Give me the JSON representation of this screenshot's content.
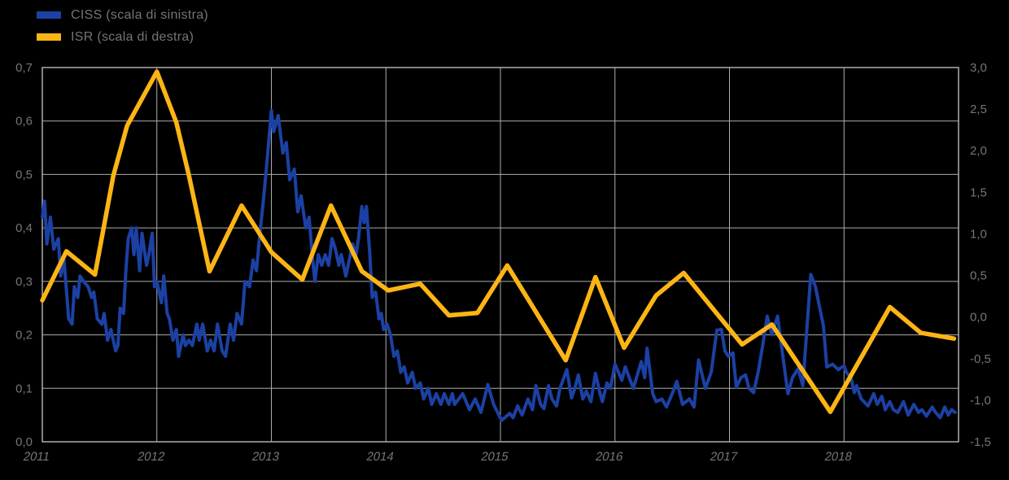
{
  "legend": {
    "items": [
      {
        "label": "CISS (scala di sinistra)",
        "color": "#1C41A4"
      },
      {
        "label": "ISR (scala di destra)",
        "color": "#FDB515"
      }
    ]
  },
  "chart_data": {
    "type": "line",
    "title": "",
    "grid": true,
    "legend_position": "top-left",
    "background_color": "#000000",
    "gridline_color": "#ADADAD",
    "text_color": "#767676",
    "x_axis": {
      "ticks": [
        "2011",
        "2012",
        "2013",
        "2014",
        "2015",
        "2016",
        "2017",
        "2018"
      ],
      "range": [
        2011,
        2019
      ]
    },
    "y_axis_left": {
      "ticks": [
        "0,7",
        "0,6",
        "0,5",
        "0,4",
        "0,3",
        "0,2",
        "0,1",
        "0,0"
      ],
      "range": [
        0.0,
        0.7
      ]
    },
    "y_axis_right": {
      "ticks": [
        "3,0",
        "2,5",
        "2,0",
        "1,5",
        "1,0",
        "0,5",
        "0,0",
        "-0,5",
        "-1,0",
        "-1,5"
      ],
      "range": [
        -1.5,
        3.0
      ]
    },
    "series": [
      {
        "name": "CISS (scala di sinistra)",
        "axis": "left",
        "color": "#1C41A4",
        "stroke_width": 4,
        "points": [
          [
            2011.0,
            0.42
          ],
          [
            2011.02,
            0.45
          ],
          [
            2011.04,
            0.37
          ],
          [
            2011.07,
            0.42
          ],
          [
            2011.1,
            0.36
          ],
          [
            2011.14,
            0.38
          ],
          [
            2011.16,
            0.31
          ],
          [
            2011.19,
            0.34
          ],
          [
            2011.23,
            0.23
          ],
          [
            2011.26,
            0.22
          ],
          [
            2011.28,
            0.29
          ],
          [
            2011.31,
            0.27
          ],
          [
            2011.33,
            0.31
          ],
          [
            2011.36,
            0.3
          ],
          [
            2011.4,
            0.29
          ],
          [
            2011.43,
            0.27
          ],
          [
            2011.45,
            0.28
          ],
          [
            2011.48,
            0.23
          ],
          [
            2011.52,
            0.22
          ],
          [
            2011.54,
            0.24
          ],
          [
            2011.57,
            0.19
          ],
          [
            2011.6,
            0.21
          ],
          [
            2011.64,
            0.17
          ],
          [
            2011.66,
            0.18
          ],
          [
            2011.68,
            0.25
          ],
          [
            2011.71,
            0.24
          ],
          [
            2011.73,
            0.32
          ],
          [
            2011.75,
            0.38
          ],
          [
            2011.78,
            0.4
          ],
          [
            2011.8,
            0.35
          ],
          [
            2011.82,
            0.4
          ],
          [
            2011.85,
            0.32
          ],
          [
            2011.87,
            0.39
          ],
          [
            2011.91,
            0.33
          ],
          [
            2011.93,
            0.35
          ],
          [
            2011.96,
            0.39
          ],
          [
            2011.98,
            0.29
          ],
          [
            2012.0,
            0.3
          ],
          [
            2012.04,
            0.26
          ],
          [
            2012.06,
            0.31
          ],
          [
            2012.09,
            0.24
          ],
          [
            2012.11,
            0.23
          ],
          [
            2012.14,
            0.19
          ],
          [
            2012.17,
            0.21
          ],
          [
            2012.19,
            0.16
          ],
          [
            2012.23,
            0.2
          ],
          [
            2012.25,
            0.18
          ],
          [
            2012.28,
            0.19
          ],
          [
            2012.31,
            0.18
          ],
          [
            2012.35,
            0.22
          ],
          [
            2012.37,
            0.19
          ],
          [
            2012.4,
            0.22
          ],
          [
            2012.44,
            0.17
          ],
          [
            2012.47,
            0.19
          ],
          [
            2012.5,
            0.17
          ],
          [
            2012.53,
            0.22
          ],
          [
            2012.57,
            0.17
          ],
          [
            2012.6,
            0.16
          ],
          [
            2012.64,
            0.22
          ],
          [
            2012.67,
            0.19
          ],
          [
            2012.7,
            0.24
          ],
          [
            2012.74,
            0.22
          ],
          [
            2012.77,
            0.3
          ],
          [
            2012.81,
            0.29
          ],
          [
            2012.84,
            0.34
          ],
          [
            2012.87,
            0.32
          ],
          [
            2012.9,
            0.39
          ],
          [
            2012.93,
            0.45
          ],
          [
            2012.96,
            0.52
          ],
          [
            2012.98,
            0.57
          ],
          [
            2013.0,
            0.62
          ],
          [
            2013.02,
            0.58
          ],
          [
            2013.06,
            0.61
          ],
          [
            2013.1,
            0.54
          ],
          [
            2013.13,
            0.56
          ],
          [
            2013.16,
            0.49
          ],
          [
            2013.2,
            0.51
          ],
          [
            2013.23,
            0.43
          ],
          [
            2013.26,
            0.46
          ],
          [
            2013.3,
            0.4
          ],
          [
            2013.33,
            0.42
          ],
          [
            2013.36,
            0.34
          ],
          [
            2013.38,
            0.3
          ],
          [
            2013.41,
            0.35
          ],
          [
            2013.44,
            0.33
          ],
          [
            2013.47,
            0.35
          ],
          [
            2013.5,
            0.33
          ],
          [
            2013.53,
            0.38
          ],
          [
            2013.56,
            0.36
          ],
          [
            2013.59,
            0.33
          ],
          [
            2013.61,
            0.35
          ],
          [
            2013.65,
            0.31
          ],
          [
            2013.68,
            0.34
          ],
          [
            2013.71,
            0.37
          ],
          [
            2013.74,
            0.35
          ],
          [
            2013.76,
            0.38
          ],
          [
            2013.79,
            0.44
          ],
          [
            2013.81,
            0.41
          ],
          [
            2013.83,
            0.44
          ],
          [
            2013.86,
            0.35
          ],
          [
            2013.88,
            0.27
          ],
          [
            2013.91,
            0.28
          ],
          [
            2013.94,
            0.23
          ],
          [
            2013.96,
            0.24
          ],
          [
            2013.98,
            0.21
          ],
          [
            2014.01,
            0.22
          ],
          [
            2014.04,
            0.2
          ],
          [
            2014.07,
            0.16
          ],
          [
            2014.1,
            0.17
          ],
          [
            2014.13,
            0.13
          ],
          [
            2014.16,
            0.14
          ],
          [
            2014.19,
            0.11
          ],
          [
            2014.23,
            0.13
          ],
          [
            2014.26,
            0.1
          ],
          [
            2014.3,
            0.11
          ],
          [
            2014.33,
            0.08
          ],
          [
            2014.37,
            0.1
          ],
          [
            2014.4,
            0.07
          ],
          [
            2014.44,
            0.09
          ],
          [
            2014.48,
            0.07
          ],
          [
            2014.51,
            0.09
          ],
          [
            2014.55,
            0.07
          ],
          [
            2014.58,
            0.09
          ],
          [
            2014.6,
            0.07
          ],
          [
            2014.67,
            0.09
          ],
          [
            2014.73,
            0.06
          ],
          [
            2014.78,
            0.08
          ],
          [
            2014.83,
            0.055
          ],
          [
            2014.89,
            0.107
          ],
          [
            2014.94,
            0.07
          ],
          [
            2015.01,
            0.04
          ],
          [
            2015.08,
            0.053
          ],
          [
            2015.11,
            0.045
          ],
          [
            2015.15,
            0.067
          ],
          [
            2015.19,
            0.05
          ],
          [
            2015.24,
            0.08
          ],
          [
            2015.28,
            0.06
          ],
          [
            2015.31,
            0.105
          ],
          [
            2015.35,
            0.07
          ],
          [
            2015.38,
            0.062
          ],
          [
            2015.42,
            0.105
          ],
          [
            2015.45,
            0.08
          ],
          [
            2015.49,
            0.067
          ],
          [
            2015.52,
            0.1
          ],
          [
            2015.58,
            0.135
          ],
          [
            2015.62,
            0.082
          ],
          [
            2015.65,
            0.1
          ],
          [
            2015.68,
            0.125
          ],
          [
            2015.72,
            0.08
          ],
          [
            2015.75,
            0.095
          ],
          [
            2015.79,
            0.075
          ],
          [
            2015.83,
            0.128
          ],
          [
            2015.87,
            0.09
          ],
          [
            2015.89,
            0.075
          ],
          [
            2015.93,
            0.11
          ],
          [
            2015.96,
            0.1
          ],
          [
            2016.0,
            0.145
          ],
          [
            2016.06,
            0.115
          ],
          [
            2016.09,
            0.14
          ],
          [
            2016.16,
            0.1
          ],
          [
            2016.23,
            0.15
          ],
          [
            2016.26,
            0.12
          ],
          [
            2016.28,
            0.175
          ],
          [
            2016.33,
            0.09
          ],
          [
            2016.36,
            0.075
          ],
          [
            2016.41,
            0.08
          ],
          [
            2016.45,
            0.065
          ],
          [
            2016.5,
            0.09
          ],
          [
            2016.54,
            0.113
          ],
          [
            2016.59,
            0.07
          ],
          [
            2016.65,
            0.08
          ],
          [
            2016.69,
            0.065
          ],
          [
            2016.73,
            0.153
          ],
          [
            2016.79,
            0.1
          ],
          [
            2016.84,
            0.13
          ],
          [
            2016.89,
            0.209
          ],
          [
            2016.93,
            0.21
          ],
          [
            2016.96,
            0.17
          ],
          [
            2016.99,
            0.16
          ],
          [
            2017.03,
            0.166
          ],
          [
            2017.06,
            0.102
          ],
          [
            2017.1,
            0.12
          ],
          [
            2017.14,
            0.125
          ],
          [
            2017.17,
            0.1
          ],
          [
            2017.21,
            0.092
          ],
          [
            2017.25,
            0.13
          ],
          [
            2017.29,
            0.18
          ],
          [
            2017.33,
            0.235
          ],
          [
            2017.37,
            0.2
          ],
          [
            2017.42,
            0.235
          ],
          [
            2017.46,
            0.17
          ],
          [
            2017.51,
            0.09
          ],
          [
            2017.55,
            0.12
          ],
          [
            2017.6,
            0.137
          ],
          [
            2017.64,
            0.105
          ],
          [
            2017.71,
            0.313
          ],
          [
            2017.75,
            0.29
          ],
          [
            2017.82,
            0.217
          ],
          [
            2017.85,
            0.14
          ],
          [
            2017.9,
            0.145
          ],
          [
            2017.95,
            0.135
          ],
          [
            2018.0,
            0.142
          ],
          [
            2018.02,
            0.13
          ],
          [
            2018.06,
            0.12
          ],
          [
            2018.09,
            0.092
          ],
          [
            2018.11,
            0.105
          ],
          [
            2018.15,
            0.08
          ],
          [
            2018.21,
            0.067
          ],
          [
            2018.26,
            0.09
          ],
          [
            2018.29,
            0.07
          ],
          [
            2018.33,
            0.085
          ],
          [
            2018.36,
            0.06
          ],
          [
            2018.4,
            0.075
          ],
          [
            2018.43,
            0.06
          ],
          [
            2018.47,
            0.055
          ],
          [
            2018.52,
            0.075
          ],
          [
            2018.56,
            0.05
          ],
          [
            2018.61,
            0.07
          ],
          [
            2018.65,
            0.055
          ],
          [
            2018.68,
            0.06
          ],
          [
            2018.72,
            0.048
          ],
          [
            2018.77,
            0.065
          ],
          [
            2018.8,
            0.055
          ],
          [
            2018.84,
            0.045
          ],
          [
            2018.88,
            0.065
          ],
          [
            2018.91,
            0.05
          ],
          [
            2018.94,
            0.06
          ],
          [
            2018.97,
            0.055
          ]
        ]
      },
      {
        "name": "ISR (scala di destra)",
        "axis": "right",
        "color": "#FDB515",
        "stroke_width": 5.5,
        "points": [
          [
            2011.0,
            0.2
          ],
          [
            2011.21,
            0.79
          ],
          [
            2011.46,
            0.51
          ],
          [
            2011.62,
            1.7
          ],
          [
            2011.74,
            2.3
          ],
          [
            2012.0,
            2.95
          ],
          [
            2012.17,
            2.34
          ],
          [
            2012.28,
            1.7
          ],
          [
            2012.46,
            0.55
          ],
          [
            2012.74,
            1.34
          ],
          [
            2013.0,
            0.78
          ],
          [
            2013.27,
            0.45
          ],
          [
            2013.52,
            1.34
          ],
          [
            2013.79,
            0.55
          ],
          [
            2014.02,
            0.32
          ],
          [
            2014.3,
            0.4
          ],
          [
            2014.55,
            0.02
          ],
          [
            2014.8,
            0.05
          ],
          [
            2015.06,
            0.62
          ],
          [
            2015.57,
            -0.52
          ],
          [
            2015.83,
            0.48
          ],
          [
            2016.08,
            -0.37
          ],
          [
            2016.36,
            0.26
          ],
          [
            2016.6,
            0.53
          ],
          [
            2017.11,
            -0.33
          ],
          [
            2017.37,
            -0.09
          ],
          [
            2017.88,
            -1.14
          ],
          [
            2018.4,
            0.12
          ],
          [
            2018.67,
            -0.19
          ],
          [
            2018.96,
            -0.26
          ]
        ]
      }
    ]
  }
}
